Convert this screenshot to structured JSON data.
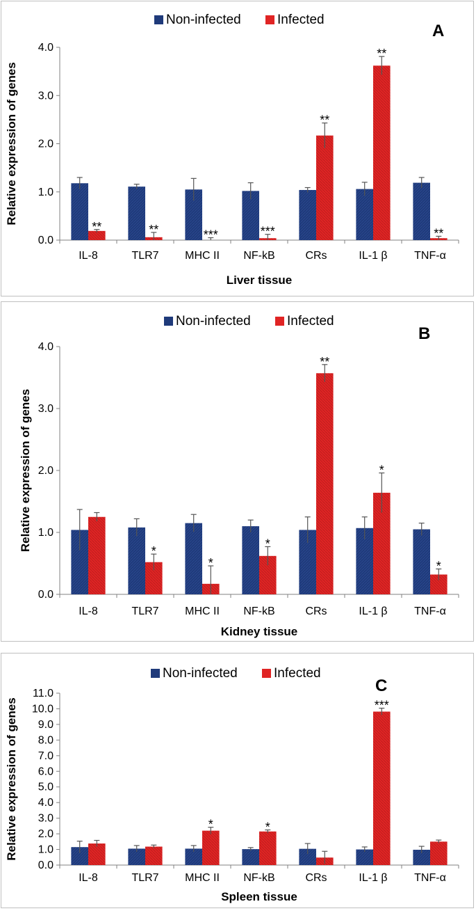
{
  "colors": {
    "non_infected": "#1f3a7a",
    "infected": "#e02424",
    "axis": "#808080",
    "error": "#555555",
    "frame": "#bfbfbf"
  },
  "legend": {
    "non_infected": "Non-infected",
    "infected": "Infected"
  },
  "chart_data": [
    {
      "type": "bar",
      "panel_label": "A",
      "categories": [
        "IL-8",
        "TLR7",
        "MHC II",
        "NF-kB",
        "CRs",
        "IL-1 β",
        "TNF-α"
      ],
      "series": [
        {
          "name": "Non-infected",
          "values": [
            1.18,
            1.11,
            1.05,
            1.02,
            1.04,
            1.06,
            1.19
          ],
          "errors": [
            0.12,
            0.05,
            0.23,
            0.17,
            0.05,
            0.14,
            0.11
          ]
        },
        {
          "name": "Infected",
          "values": [
            0.19,
            0.06,
            0.0,
            0.04,
            2.17,
            3.62,
            0.04
          ],
          "errors": [
            0.03,
            0.1,
            0.05,
            0.08,
            0.26,
            0.19,
            0.04
          ]
        }
      ],
      "significance": [
        "**",
        "**",
        "***",
        "***",
        "**",
        "**",
        "**"
      ],
      "ylim": [
        0,
        4
      ],
      "yticks": [
        "0.0",
        "1.0",
        "2.0",
        "3.0",
        "4.0"
      ],
      "ylabel": "Relative expression of genes",
      "xlabel": "Liver tissue"
    },
    {
      "type": "bar",
      "panel_label": "B",
      "categories": [
        "IL-8",
        "TLR7",
        "MHC II",
        "NF-kB",
        "CRs",
        "IL-1 β",
        "TNF-α"
      ],
      "series": [
        {
          "name": "Non-infected",
          "values": [
            1.04,
            1.08,
            1.15,
            1.1,
            1.04,
            1.07,
            1.05
          ],
          "errors": [
            0.33,
            0.14,
            0.14,
            0.1,
            0.21,
            0.18,
            0.1
          ]
        },
        {
          "name": "Infected",
          "values": [
            1.25,
            0.52,
            0.17,
            0.62,
            3.57,
            1.64,
            0.32
          ],
          "errors": [
            0.07,
            0.13,
            0.29,
            0.15,
            0.14,
            0.32,
            0.09
          ]
        }
      ],
      "significance": [
        "",
        "*",
        "*",
        "*",
        "**",
        "*",
        "*"
      ],
      "ylim": [
        0,
        4
      ],
      "yticks": [
        "0.0",
        "1.0",
        "2.0",
        "3.0",
        "4.0"
      ],
      "ylabel": "Relative expression of genes",
      "xlabel": "Kidney tissue"
    },
    {
      "type": "bar",
      "panel_label": "C",
      "categories": [
        "IL-8",
        "TLR7",
        "MHC II",
        "NF-kB",
        "CRs",
        "IL-1 β",
        "TNF-α"
      ],
      "series": [
        {
          "name": "Non-infected",
          "values": [
            1.15,
            1.05,
            1.05,
            1.02,
            1.04,
            1.0,
            0.98
          ],
          "errors": [
            0.38,
            0.2,
            0.2,
            0.1,
            0.34,
            0.16,
            0.22
          ]
        },
        {
          "name": "Infected",
          "values": [
            1.38,
            1.18,
            2.2,
            2.15,
            0.48,
            9.82,
            1.5
          ],
          "errors": [
            0.2,
            0.1,
            0.22,
            0.1,
            0.4,
            0.22,
            0.1
          ]
        }
      ],
      "significance": [
        "",
        "",
        "*",
        "*",
        "",
        "***",
        ""
      ],
      "ylim": [
        0,
        11
      ],
      "yticks": [
        "0.0",
        "1.0",
        "2.0",
        "3.0",
        "4.0",
        "5.0",
        "6.0",
        "7.0",
        "8.0",
        "9.0",
        "10.0",
        "11.0"
      ],
      "ylabel": "Relative expression of genes",
      "xlabel": "Spleen tissue"
    }
  ]
}
